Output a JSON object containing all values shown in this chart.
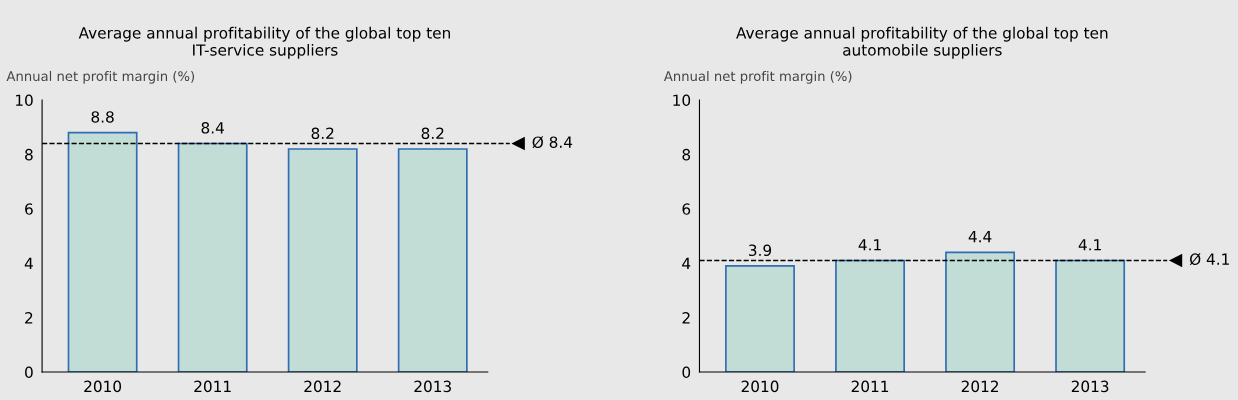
{
  "chart_data": [
    {
      "type": "bar",
      "title": "Average annual profitability of the global top ten\nIT-service suppliers",
      "ylabel": "Annual net profit margin (%)",
      "categories": [
        "2010",
        "2011",
        "2012",
        "2013"
      ],
      "values": [
        8.8,
        8.4,
        8.2,
        8.2
      ],
      "color": "#c2ddd5",
      "ylim": [
        0,
        10
      ],
      "yticks": [
        0,
        2,
        4,
        6,
        8,
        10
      ],
      "data_labels": true,
      "grid": false,
      "legend": false,
      "ref_lines": [
        {
          "axis": "y",
          "value": 8.4,
          "label": "Ø 8.4",
          "line_style": "dashed",
          "color": "#000000"
        }
      ]
    },
    {
      "type": "bar",
      "title": "Average annual profitability of the global top ten\nautomobile suppliers",
      "ylabel": "Annual net profit margin (%)",
      "categories": [
        "2010",
        "2011",
        "2012",
        "2013"
      ],
      "values": [
        3.9,
        4.1,
        4.4,
        4.1
      ],
      "color": "#c2ddd5",
      "ylim": [
        0,
        10
      ],
      "yticks": [
        0,
        2,
        4,
        6,
        8,
        10
      ],
      "data_labels": true,
      "grid": false,
      "legend": false,
      "ref_lines": [
        {
          "axis": "y",
          "value": 4.1,
          "label": "Ø 4.1",
          "line_style": "dashed",
          "color": "#000000"
        }
      ]
    }
  ]
}
